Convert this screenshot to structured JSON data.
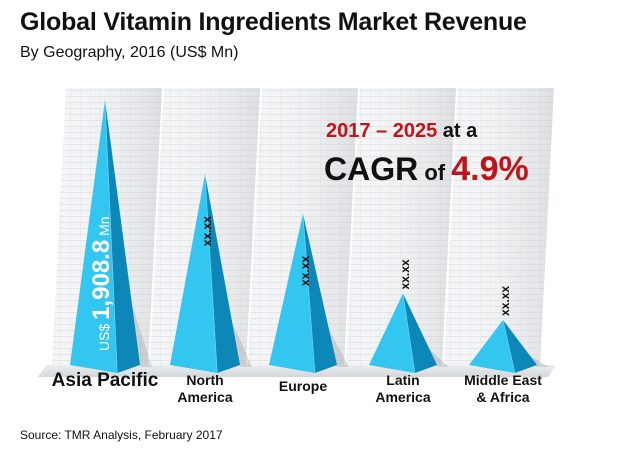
{
  "header": {
    "title": "Global Vitamin Ingredients Market Revenue",
    "subtitle": "By Geography, 2016 (US$ Mn)"
  },
  "callout": {
    "period": "2017 – 2025",
    "at_a": " at a",
    "cagr_word": "CAGR",
    "of_word": " of ",
    "cagr_value": "4.9%"
  },
  "footer": {
    "source": "Source: TMR Analysis, February 2017"
  },
  "colors": {
    "accent_red": "#c0141b",
    "pyramid_light": "#33c6f0",
    "pyramid_dark": "#0d86b8"
  },
  "chart_data": {
    "type": "bar",
    "title": "Global Vitamin Ingredients Market Revenue",
    "subtitle": "By Geography, 2016 (US$ Mn)",
    "unit": "US$ Mn",
    "categories": [
      {
        "name": "Asia Pacific",
        "label_lines": [
          "Asia Pacific"
        ],
        "value_label": "1,908.8",
        "value_prefix": "US$ ",
        "value_suffix": " Mn",
        "relative_height": 1.0
      },
      {
        "name": "North America",
        "label_lines": [
          "North",
          "America"
        ],
        "value_label": "xx.xx",
        "relative_height": 0.72
      },
      {
        "name": "Europe",
        "label_lines": [
          "Europe"
        ],
        "value_label": "xx.xx",
        "relative_height": 0.57
      },
      {
        "name": "Latin America",
        "label_lines": [
          "Latin",
          "America"
        ],
        "value_label": "xx.xx",
        "relative_height": 0.27
      },
      {
        "name": "Middle East & Africa",
        "label_lines": [
          "Middle East",
          "& Africa"
        ],
        "value_label": "xx.xx",
        "relative_height": 0.17
      }
    ]
  }
}
